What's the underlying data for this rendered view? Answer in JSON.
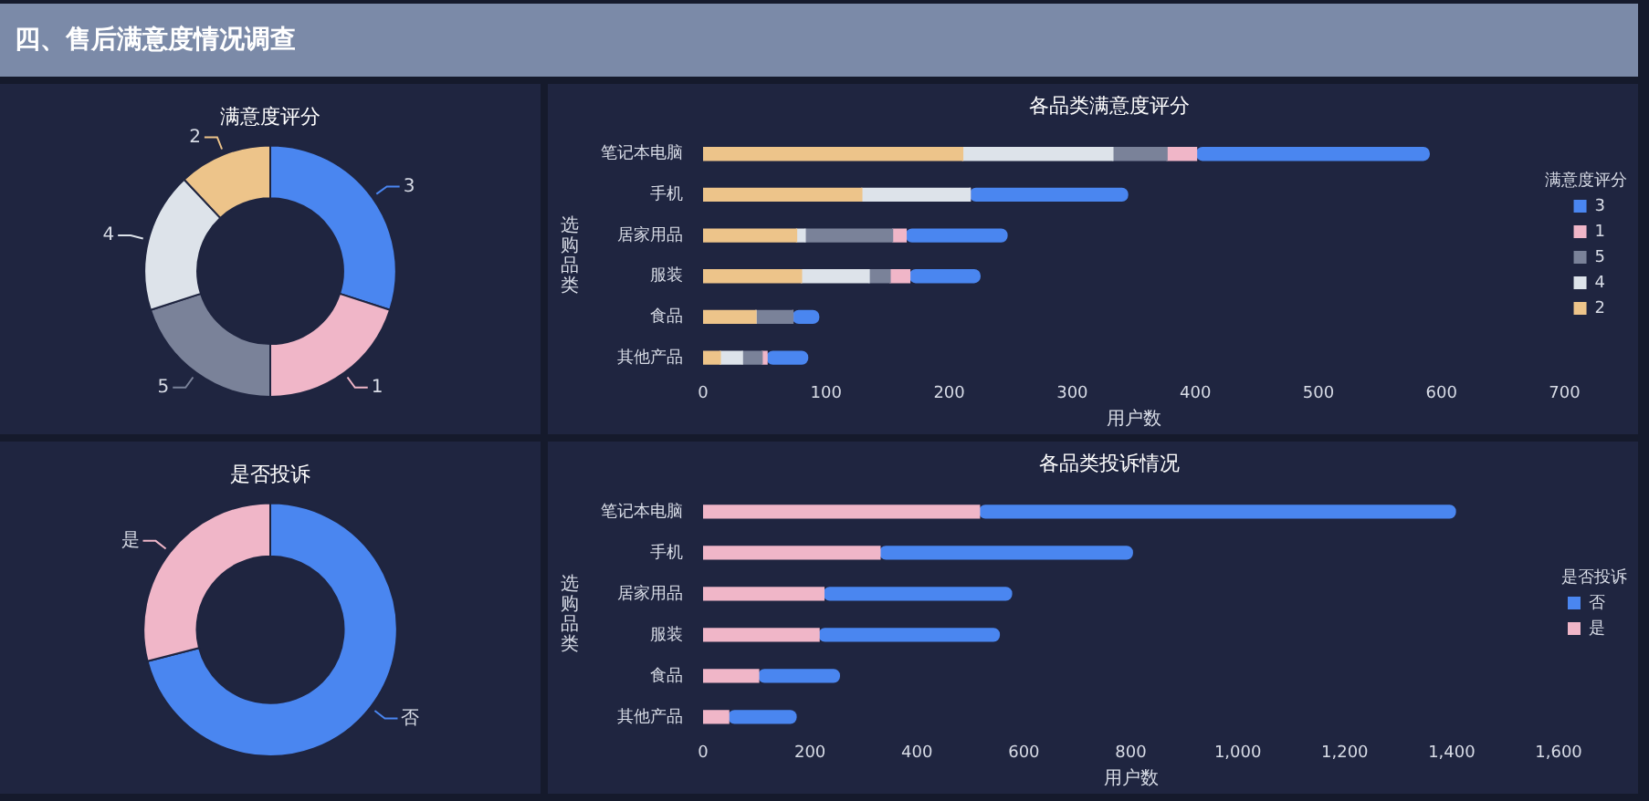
{
  "chart_data": [
    {
      "type": "donut",
      "title": "满意度评分",
      "annotations": [
        "四、售后满意度情况调查"
      ],
      "categories": [
        "3",
        "1",
        "5",
        "4",
        "2"
      ],
      "values": [
        30,
        20,
        20,
        18,
        12
      ],
      "colors": [
        "#4a86f0",
        "#f0b6c8",
        "#7a8299",
        "#dde3ea",
        "#edc48a"
      ],
      "legend": false
    },
    {
      "type": "bar",
      "title": "各品类满意度评分",
      "orientation": "horizontal",
      "stacked": true,
      "xlabel": "用户数",
      "ylabel": "选购品类",
      "legend": "top right",
      "legend_title": "满意度评分",
      "grid": false,
      "categories": [
        "笔记本电脑",
        "手机",
        "居家用品",
        "服装",
        "食品",
        "其他产品"
      ],
      "xlim": [
        0,
        700
      ],
      "xticks": [
        0,
        100,
        200,
        300,
        400,
        500,
        600,
        700
      ],
      "series": [
        {
          "name": "2",
          "color": "#edc48a",
          "values": [
            211,
            129,
            76,
            80,
            43,
            14
          ]
        },
        {
          "name": "4",
          "color": "#dde3ea",
          "values": [
            122,
            88,
            7,
            55,
            0,
            18
          ]
        },
        {
          "name": "5",
          "color": "#7a8299",
          "values": [
            44,
            0,
            71,
            17,
            30,
            16
          ]
        },
        {
          "name": "1",
          "color": "#f0b6c8",
          "values": [
            24,
            0,
            11,
            16,
            0,
            4
          ]
        },
        {
          "name": "3",
          "color": "#4a86f0",
          "values": [
            189,
            128,
            82,
            57,
            21,
            33
          ]
        }
      ]
    },
    {
      "type": "donut",
      "title": "是否投诉",
      "categories": [
        "否",
        "是"
      ],
      "values": [
        71,
        29
      ],
      "colors": [
        "#4a86f0",
        "#f0b6c8"
      ],
      "legend": false
    },
    {
      "type": "bar",
      "title": "各品类投诉情况",
      "orientation": "horizontal",
      "stacked": true,
      "xlabel": "用户数",
      "ylabel": "选购品类",
      "legend": "top right",
      "legend_title": "是否投诉",
      "grid": false,
      "categories": [
        "笔记本电脑",
        "手机",
        "居家用品",
        "服装",
        "食品",
        "其他产品"
      ],
      "xlim": [
        0,
        1600
      ],
      "xticks": [
        0,
        200,
        400,
        600,
        800,
        {
          "value": 1000,
          "label": "1,000"
        },
        {
          "value": 1200,
          "label": "1,200"
        },
        {
          "value": 1400,
          "label": "1,400"
        },
        {
          "value": 1600,
          "label": "1,600"
        }
      ],
      "series": [
        {
          "name": "是",
          "color": "#f0b6c8",
          "values": [
            517,
            331,
            226,
            217,
            104,
            48
          ]
        },
        {
          "name": "否",
          "color": "#4a86f0",
          "values": [
            890,
            472,
            351,
            337,
            151,
            126
          ]
        }
      ]
    }
  ]
}
